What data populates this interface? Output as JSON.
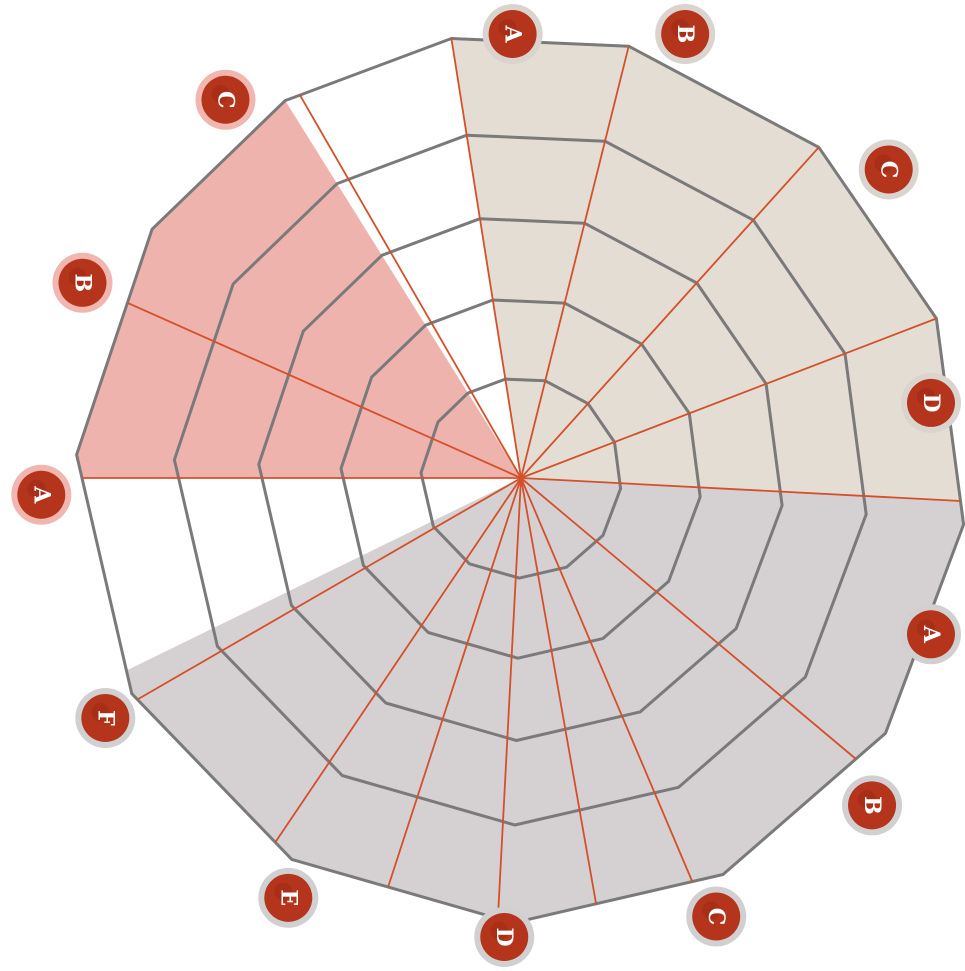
{
  "diagram": {
    "groups": [
      {
        "name": "top-right-group",
        "fill": "#e3ddd3",
        "badge_ring": "#d9d5ce",
        "labels": [
          "A",
          "B",
          "C",
          "D"
        ]
      },
      {
        "name": "bottom-group",
        "fill": "#d5d1d3",
        "badge_ring": "#d0d0d0",
        "labels": [
          "A",
          "B",
          "C",
          "D",
          "E",
          "F"
        ]
      },
      {
        "name": "left-group",
        "fill": "#efb3ad",
        "badge_ring": "#f2b6b0",
        "labels": [
          "A",
          "B",
          "C"
        ]
      }
    ],
    "colors": {
      "badge": "#b5341c",
      "badge_dark": "#8e2412",
      "grid": "#7a7a7a",
      "spoke": "#d4502a",
      "background": "#ffffff"
    },
    "ring_count": 5,
    "vertex_count": 13
  }
}
